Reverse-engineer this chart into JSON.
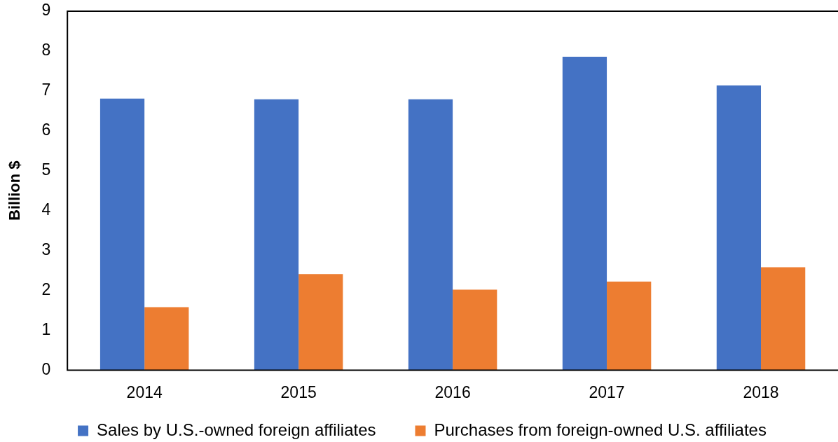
{
  "chart_data": {
    "type": "bar",
    "ylabel": "Billion $",
    "categories": [
      "2014",
      "2015",
      "2016",
      "2017",
      "2018"
    ],
    "series": [
      {
        "name": "Sales by U.S.-owned foreign affiliates",
        "color": "#4472c4",
        "values": [
          6.81,
          6.79,
          6.79,
          7.86,
          7.14
        ]
      },
      {
        "name": "Purchases from foreign-owned U.S. affiliates",
        "color": "#ed7d31",
        "values": [
          1.58,
          2.41,
          2.02,
          2.22,
          2.58
        ]
      }
    ],
    "ylim": [
      0,
      9
    ],
    "yticks": [
      0,
      1,
      2,
      3,
      4,
      5,
      6,
      7,
      8,
      9
    ],
    "grid": false,
    "legend": "bottom"
  }
}
